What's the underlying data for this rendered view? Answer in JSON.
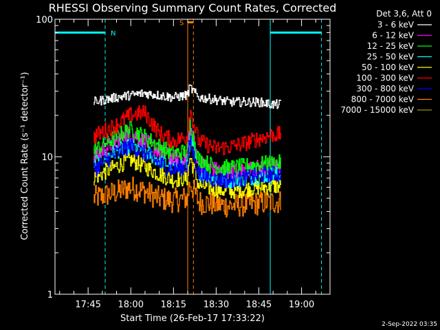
{
  "chart_data": {
    "type": "line",
    "title": "RHESSI Observing Summary Count Rates, Corrected",
    "xlabel": "Start Time (26-Feb-17 17:33:22)",
    "ylabel": "Corrected Count Rate (s⁻¹ detector⁻¹)",
    "yscale": "log",
    "ylim": [
      1,
      100
    ],
    "xlim": [
      "17:33:22",
      "19:10:00"
    ],
    "x_ticks": [
      "17:45",
      "18:00",
      "18:15",
      "18:30",
      "18:45",
      "19:00"
    ],
    "y_ticks": [
      "1",
      "10",
      "100"
    ],
    "grid": false,
    "legend_title": "Det 3,6, Att 0",
    "legend_position": "right",
    "series": [
      {
        "name": "3 - 6 keV",
        "color": "#ffffff",
        "times": [
          "17:47",
          "17:55",
          "18:00",
          "18:05",
          "18:10",
          "18:15",
          "18:20",
          "18:21",
          "18:24",
          "18:30",
          "18:35",
          "18:40",
          "18:45",
          "18:50",
          "18:53"
        ],
        "values": [
          25,
          27,
          28,
          29,
          28,
          27,
          28,
          32,
          27,
          26,
          25,
          25,
          25,
          24,
          24
        ]
      },
      {
        "name": "6 - 12 keV",
        "color": "#ff00ff",
        "times": [
          "17:47",
          "17:55",
          "18:00",
          "18:05",
          "18:10",
          "18:15",
          "18:20",
          "18:21",
          "18:24",
          "18:30",
          "18:35",
          "18:40",
          "18:45",
          "18:50",
          "18:53"
        ],
        "values": [
          10,
          13,
          15,
          13,
          11,
          9.8,
          10,
          17,
          9,
          8,
          7.8,
          8,
          8.3,
          8.5,
          8.5
        ]
      },
      {
        "name": "12 - 25 keV",
        "color": "#00ff00",
        "times": [
          "17:47",
          "17:55",
          "18:00",
          "18:05",
          "18:10",
          "18:15",
          "18:20",
          "18:21",
          "18:24",
          "18:30",
          "18:35",
          "18:40",
          "18:45",
          "18:50",
          "18:53"
        ],
        "values": [
          11,
          14,
          16,
          14,
          12,
          10.5,
          11,
          18,
          9.5,
          8.5,
          8.3,
          8.5,
          8.8,
          9,
          9
        ]
      },
      {
        "name": "25 - 50 keV",
        "color": "#00ffff",
        "times": [
          "17:47",
          "17:55",
          "18:00",
          "18:05",
          "18:10",
          "18:15",
          "18:20",
          "18:21",
          "18:24",
          "18:30",
          "18:35",
          "18:40",
          "18:45",
          "18:50",
          "18:53"
        ],
        "values": [
          9,
          11,
          12,
          11,
          9.5,
          8.5,
          9,
          14,
          7.8,
          7,
          6.8,
          7,
          7.2,
          7.4,
          7.4
        ]
      },
      {
        "name": "50 - 100 keV",
        "color": "#ffff00",
        "times": [
          "17:47",
          "17:55",
          "18:00",
          "18:05",
          "18:10",
          "18:15",
          "18:20",
          "18:21",
          "18:24",
          "18:30",
          "18:35",
          "18:40",
          "18:45",
          "18:50",
          "18:53"
        ],
        "values": [
          7,
          8.5,
          9.5,
          8.5,
          7.5,
          6.8,
          7,
          10,
          6.2,
          5.8,
          5.6,
          5.8,
          6,
          6.1,
          6.1
        ]
      },
      {
        "name": "100 - 300 keV",
        "color": "#ff0000",
        "times": [
          "17:47",
          "17:55",
          "18:00",
          "18:05",
          "18:10",
          "18:15",
          "18:20",
          "18:21",
          "18:24",
          "18:30",
          "18:35",
          "18:40",
          "18:45",
          "18:50",
          "18:53"
        ],
        "values": [
          14,
          17,
          20,
          21,
          15,
          13,
          14,
          22,
          13,
          11.5,
          11.8,
          12.5,
          13.5,
          14.5,
          14.5
        ]
      },
      {
        "name": "300 - 800 keV",
        "color": "#0000ff",
        "times": [
          "17:47",
          "17:55",
          "18:00",
          "18:05",
          "18:10",
          "18:15",
          "18:20",
          "18:21",
          "18:24",
          "18:30",
          "18:35",
          "18:40",
          "18:45",
          "18:50",
          "18:53"
        ],
        "values": [
          8,
          10.5,
          12,
          10.5,
          9,
          8,
          8.5,
          13,
          7.5,
          6.8,
          6.7,
          7,
          7.3,
          7.5,
          7.5
        ]
      },
      {
        "name": "800 - 7000 keV",
        "color": "#ff8000",
        "times": [
          "17:47",
          "17:55",
          "18:00",
          "18:05",
          "18:10",
          "18:15",
          "18:20",
          "18:21",
          "18:24",
          "18:30",
          "18:35",
          "18:40",
          "18:45",
          "18:50",
          "18:53"
        ],
        "values": [
          5,
          5.5,
          6,
          5.6,
          5,
          4.8,
          5,
          6.5,
          4.7,
          4.5,
          4.4,
          4.5,
          4.6,
          4.7,
          4.7
        ]
      },
      {
        "name": "7000 - 15000 keV",
        "color": "#999900",
        "times": [],
        "values": []
      }
    ],
    "markers": [
      {
        "label": "N",
        "color": "#00ffff",
        "type": "night",
        "spans": [
          [
            "17:33:22",
            "17:51"
          ],
          [
            "18:49",
            "19:07"
          ]
        ],
        "level": 80
      },
      {
        "label": "S",
        "color": "#ff8000",
        "type": "saa",
        "times": [
          "18:20",
          "18:22"
        ],
        "level": 95
      }
    ],
    "footer_date": "2-Sep-2022 03:35"
  }
}
